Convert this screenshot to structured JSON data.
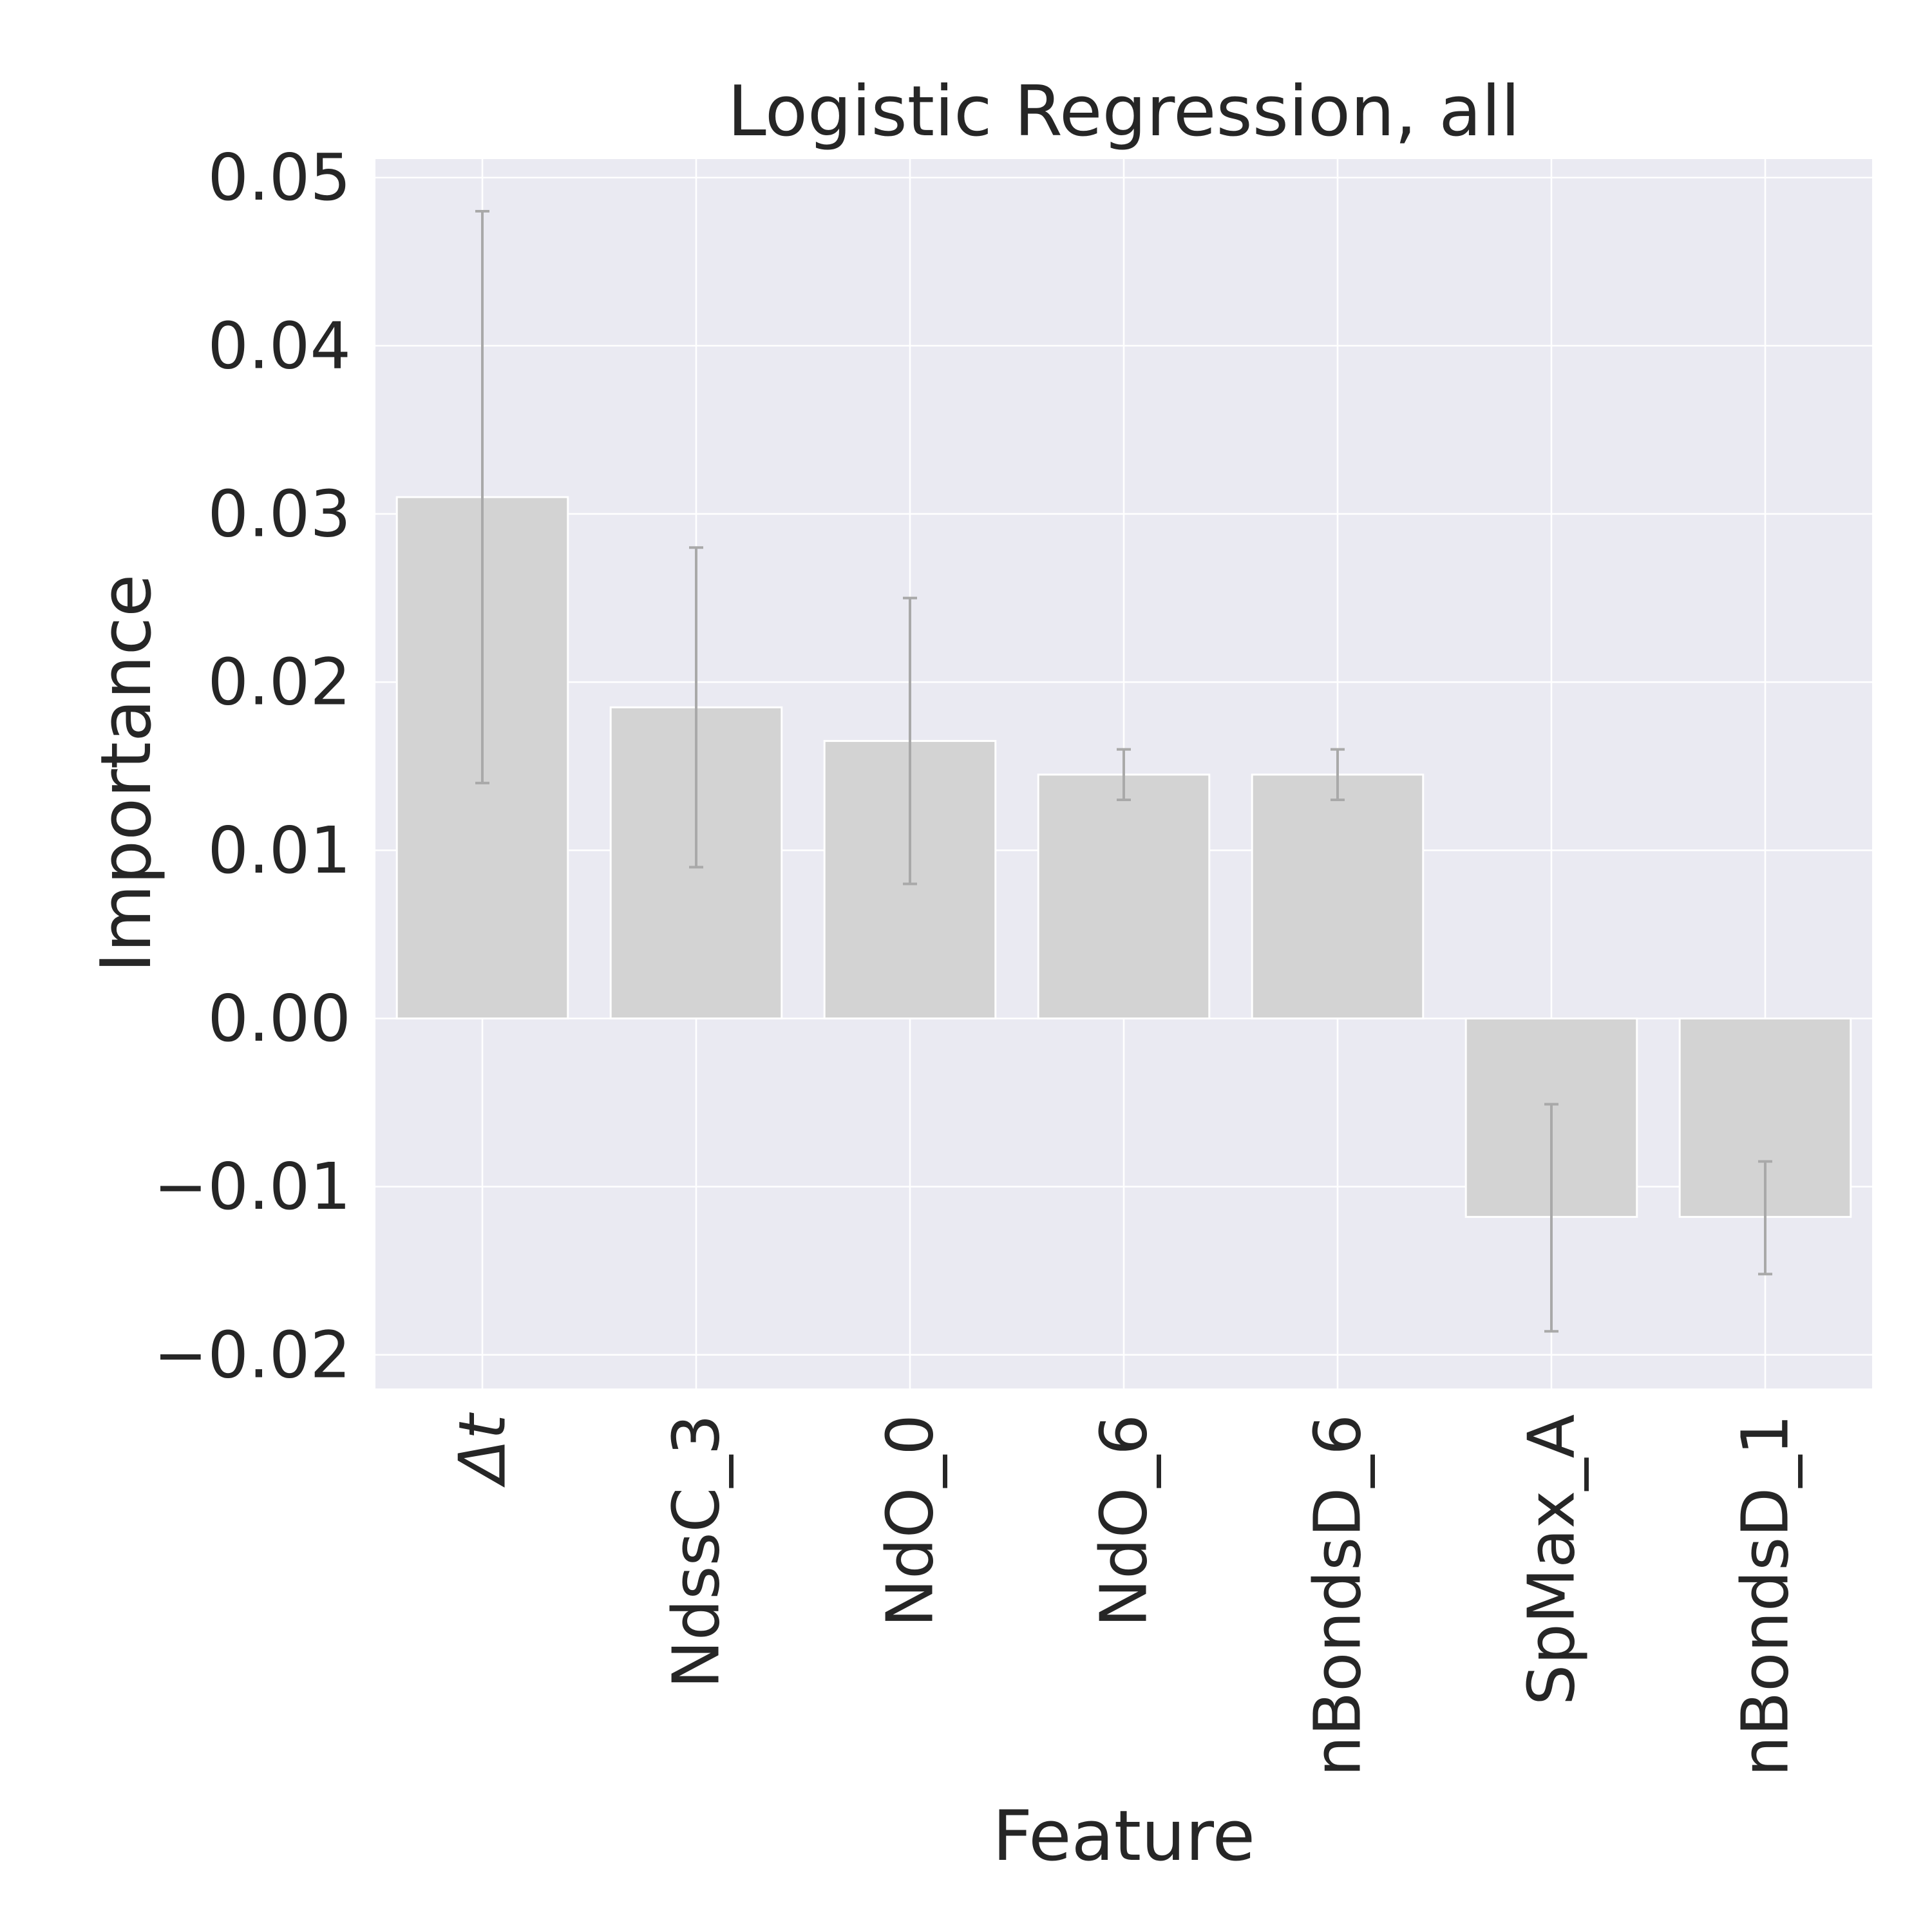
{
  "chart_data": {
    "type": "bar",
    "title": "Logistic Regression, all",
    "xlabel": "Feature",
    "ylabel": "Importance",
    "categories": [
      "Δt",
      "NdssC_3",
      "NdO_0",
      "NdO_6",
      "nBondsD_6",
      "SpMax_A",
      "nBondsD_1"
    ],
    "values": [
      0.031,
      0.0185,
      0.0165,
      0.0145,
      0.0145,
      -0.0118,
      -0.0118
    ],
    "error_low": [
      0.014,
      0.009,
      0.008,
      0.013,
      0.013,
      -0.0186,
      -0.0152
    ],
    "error_high": [
      0.048,
      0.028,
      0.025,
      0.016,
      0.016,
      -0.0051,
      -0.0085
    ],
    "ylim": [
      -0.022,
      0.0511
    ],
    "yticks": [
      -0.02,
      -0.01,
      0.0,
      0.01,
      0.02,
      0.03,
      0.04,
      0.05
    ],
    "ytick_labels": [
      "−0.02",
      "−0.01",
      "0.00",
      "0.01",
      "0.02",
      "0.03",
      "0.04",
      "0.05"
    ],
    "grid": true,
    "colors": {
      "background": "#eaeaf2",
      "grid": "#ffffff",
      "bar": "#d3d3d3",
      "error_bar": "#a9a9a9",
      "text": "#262626"
    }
  }
}
